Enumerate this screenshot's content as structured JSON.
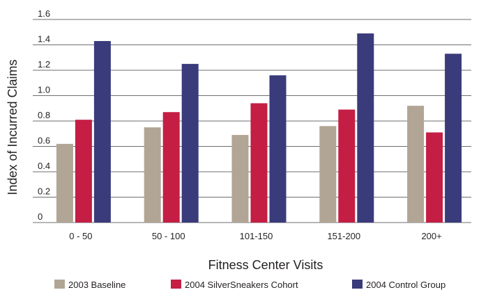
{
  "chart_data": {
    "type": "bar",
    "categories": [
      "0 - 50",
      "50 - 100",
      "101-150",
      "151-200",
      "200+"
    ],
    "series": [
      {
        "name": "2003 Baseline",
        "color": "#b1a595",
        "values": [
          0.62,
          0.75,
          0.69,
          0.76,
          0.92
        ]
      },
      {
        "name": "2004 SilverSneakers Cohort",
        "color": "#c41e45",
        "values": [
          0.81,
          0.87,
          0.94,
          0.89,
          0.71
        ]
      },
      {
        "name": "2004 Control Group",
        "color": "#3a3b7a",
        "values": [
          1.43,
          1.25,
          1.16,
          1.49,
          1.33
        ]
      }
    ],
    "yticks": [
      "0",
      "0.2",
      "0.4",
      "0.6",
      "0.8",
      "1.0",
      "1.2",
      "1.4",
      "1.6"
    ],
    "ylim": [
      0,
      1.6
    ],
    "xlabel": "Fitness Center Visits",
    "ylabel": "Index of Incurred Claims",
    "grid": true,
    "legend_position": "bottom"
  }
}
